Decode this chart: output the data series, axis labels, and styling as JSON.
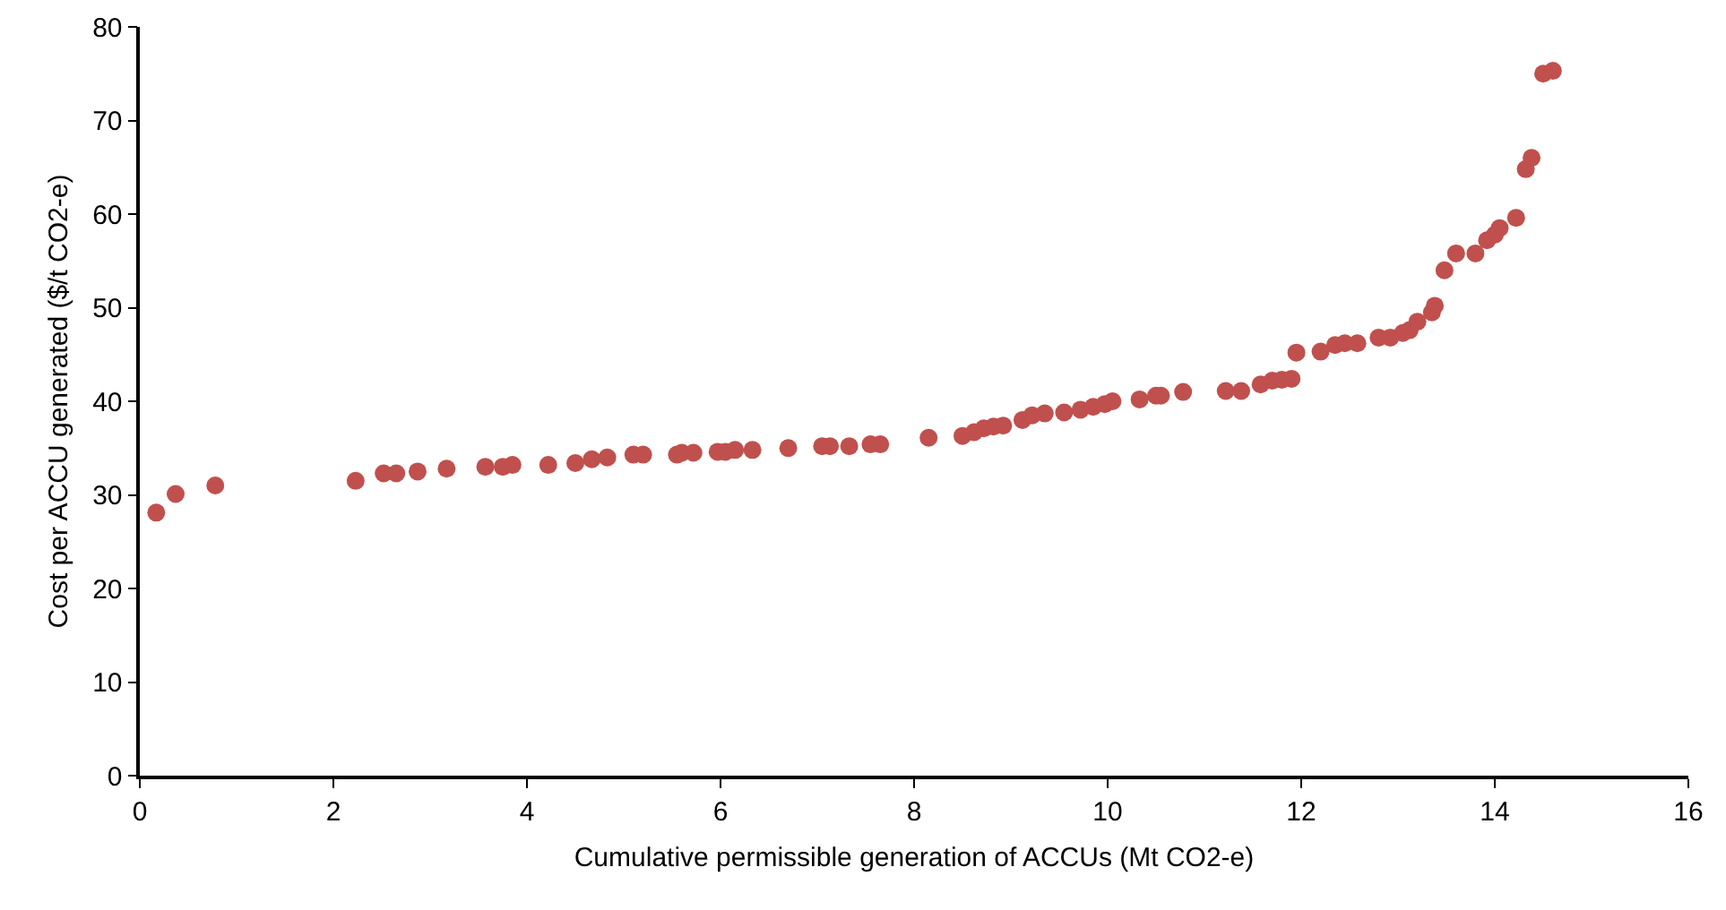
{
  "chart_data": {
    "type": "scatter",
    "xlabel": "Cumulative permissible generation of ACCUs (Mt CO2-e)",
    "ylabel": "Cost per ACCU generated ($/t CO2-e)",
    "xlim": [
      0,
      16
    ],
    "xticks": [
      0,
      2,
      4,
      6,
      8,
      10,
      12,
      14,
      16
    ],
    "ylim": [
      0,
      80
    ],
    "yticks": [
      0,
      10,
      20,
      30,
      40,
      50,
      60,
      70,
      80
    ],
    "grid": false,
    "marker": "circle",
    "series": [
      {
        "color": "#c0504d",
        "x": [
          0.17,
          0.37,
          0.78,
          2.23,
          2.52,
          2.65,
          2.87,
          3.17,
          3.57,
          3.75,
          3.85,
          4.22,
          4.5,
          4.67,
          4.83,
          5.1,
          5.2,
          5.55,
          5.6,
          5.72,
          5.97,
          6.05,
          6.15,
          6.33,
          6.7,
          7.05,
          7.13,
          7.33,
          7.55,
          7.65,
          8.15,
          8.5,
          8.62,
          8.72,
          8.82,
          8.92,
          9.12,
          9.22,
          9.35,
          9.55,
          9.72,
          9.85,
          9.97,
          10.05,
          10.33,
          10.5,
          10.55,
          10.78,
          11.22,
          11.38,
          11.58,
          11.7,
          11.8,
          11.9,
          11.95,
          12.2,
          12.35,
          12.45,
          12.58,
          12.8,
          12.92,
          13.05,
          13.12,
          13.2,
          13.35,
          13.38,
          13.48,
          13.6,
          13.8,
          13.92,
          14.0,
          14.05,
          14.22,
          14.32,
          14.38,
          14.5,
          14.6
        ],
        "values": [
          28.1,
          30.1,
          31,
          31.5,
          32.3,
          32.3,
          32.5,
          32.8,
          33,
          33,
          33.2,
          33.2,
          33.4,
          33.8,
          34,
          34.3,
          34.3,
          34.3,
          34.5,
          34.5,
          34.6,
          34.6,
          34.8,
          34.8,
          35,
          35.2,
          35.2,
          35.2,
          35.4,
          35.4,
          36.1,
          36.3,
          36.7,
          37.1,
          37.3,
          37.4,
          38,
          38.5,
          38.7,
          38.8,
          39.1,
          39.4,
          39.7,
          40,
          40.2,
          40.6,
          40.6,
          41,
          41.1,
          41.1,
          41.8,
          42.2,
          42.3,
          42.4,
          45.2,
          45.3,
          46,
          46.2,
          46.2,
          46.8,
          46.8,
          47.3,
          47.6,
          48.5,
          49.5,
          50.2,
          54,
          55.8,
          55.8,
          57.2,
          57.8,
          58.5,
          59.6,
          64.8,
          66,
          75,
          75.3
        ]
      }
    ]
  }
}
